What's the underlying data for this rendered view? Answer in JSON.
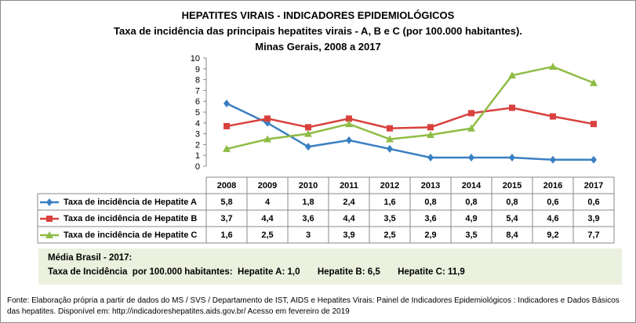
{
  "chart_data": {
    "type": "line",
    "title": "HEPATITES VIRAIS - INDICADORES EPIDEMIOLÓGICOS",
    "subtitle": "Taxa de incidência das principais hepatites virais - A, B e C (por 100.000 habitantes).",
    "subtitle2": "Minas Gerais, 2008 a 2017",
    "categories": [
      "2008",
      "2009",
      "2010",
      "2011",
      "2012",
      "2013",
      "2014",
      "2015",
      "2016",
      "2017"
    ],
    "ylim": [
      0,
      10
    ],
    "yticks": [
      "0",
      "1",
      "2",
      "3",
      "4",
      "5",
      "6",
      "7",
      "8",
      "9",
      "10"
    ],
    "grid": false,
    "legend": "data-table",
    "series": [
      {
        "name": "Taxa de incidência de Hepatite A",
        "color": "#3a7fc2",
        "marker": "diamond",
        "values": [
          5.8,
          4,
          1.8,
          2.4,
          1.6,
          0.8,
          0.8,
          0.8,
          0.6,
          0.6
        ],
        "labels": [
          "5,8",
          "4",
          "1,8",
          "2,4",
          "1,6",
          "0,8",
          "0,8",
          "0,8",
          "0,6",
          "0,6"
        ]
      },
      {
        "name": "Taxa de incidência de Hepatite B",
        "color": "#d8413e",
        "marker": "square",
        "values": [
          3.7,
          4.4,
          3.6,
          4.4,
          3.5,
          3.6,
          4.9,
          5.4,
          4.6,
          3.9
        ],
        "labels": [
          "3,7",
          "4,4",
          "3,6",
          "4,4",
          "3,5",
          "3,6",
          "4,9",
          "5,4",
          "4,6",
          "3,9"
        ]
      },
      {
        "name": "Taxa de incidência de Hepatite C",
        "color": "#8fbc45",
        "marker": "triangle",
        "values": [
          1.6,
          2.5,
          3,
          3.9,
          2.5,
          2.9,
          3.5,
          8.4,
          9.2,
          7.7
        ],
        "labels": [
          "1,6",
          "2,5",
          "3",
          "3,9",
          "2,5",
          "2,9",
          "3,5",
          "8,4",
          "9,2",
          "7,7"
        ]
      }
    ]
  },
  "media": {
    "line1": "Média Brasil - 2017:",
    "line2": "Taxa de Incidência  por 100.000 habitantes:  Hepatite A: 1,0       Hepatite B: 6,5       Hepatite C: 11,9",
    "background": "#ebf1de"
  },
  "fonte": "Fonte: Elaboração própria a partir de dados do MS / SVS / Departamento de IST, AIDS e Hepatites Virais:  Painel de Indicadores Epidemiológicos : Indicadores e Dados Básicos das hepatites.  Disponível em: http://indicadoreshepatites.aids.gov.br/     Acesso em fevereiro de 2019"
}
